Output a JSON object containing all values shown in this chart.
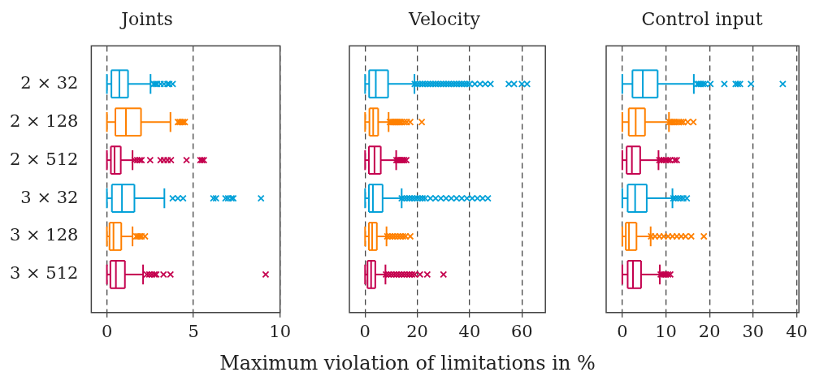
{
  "chart_data": [
    {
      "type": "box",
      "orientation": "horizontal",
      "title": "Joints",
      "categories": [
        "2 × 32",
        "2 × 128",
        "2 × 512",
        "3 × 32",
        "3 × 128",
        "3 × 512"
      ],
      "colors": [
        "#00a0d8",
        "#ff8000",
        "#c4004e",
        "#00a0d8",
        "#ff8000",
        "#c4004e"
      ],
      "marker": "cross",
      "grid": "x",
      "xlim": [
        -0.9,
        10
      ],
      "xticks": [
        0,
        5,
        10
      ],
      "boxes": [
        {
          "low": 0,
          "q1": 0.26,
          "median": 0.72,
          "q3": 1.22,
          "high": 2.52,
          "outliers": [
            2.7,
            2.8,
            2.9,
            3.1,
            3.3,
            3.5,
            3.6,
            3.8
          ]
        },
        {
          "low": 0,
          "q1": 0.49,
          "median": 1.1,
          "q3": 1.97,
          "high": 3.67,
          "outliers": [
            4.1,
            4.2,
            4.3,
            4.4,
            4.5
          ]
        },
        {
          "low": 0,
          "q1": 0.23,
          "median": 0.44,
          "q3": 0.8,
          "high": 1.48,
          "outliers": [
            1.6,
            1.75,
            1.9,
            2.0,
            2.5,
            3.1,
            3.3,
            3.5,
            3.7,
            4.6,
            5.4,
            5.5,
            5.6
          ]
        },
        {
          "low": 0,
          "q1": 0.29,
          "median": 0.87,
          "q3": 1.59,
          "high": 3.32,
          "outliers": [
            3.8,
            4.1,
            4.4,
            6.15,
            6.3,
            6.85,
            7.0,
            7.2,
            7.3,
            8.9
          ]
        },
        {
          "low": 0,
          "q1": 0.15,
          "median": 0.38,
          "q3": 0.83,
          "high": 1.48,
          "outliers": [
            1.7,
            1.8,
            1.9,
            2.0,
            2.2
          ]
        },
        {
          "low": 0,
          "q1": 0.2,
          "median": 0.52,
          "q3": 1.04,
          "high": 2.09,
          "outliers": [
            2.3,
            2.45,
            2.6,
            2.75,
            2.85,
            3.27,
            3.67,
            9.17
          ]
        }
      ]
    },
    {
      "type": "box",
      "orientation": "horizontal",
      "title": "Velocity",
      "xlabel": "Maximum violation of limitations in %",
      "tick_labels": "x",
      "colors": [
        "#00a0d8",
        "#ff8000",
        "#c4004e",
        "#00a0d8",
        "#ff8000",
        "#c4004e"
      ],
      "marker": "cross",
      "grid": "x",
      "xlim": [
        -6,
        69
      ],
      "xticks": [
        0,
        20,
        40,
        60
      ],
      "boxes": [
        {
          "low": 0,
          "q1": 1.55,
          "median": 4.1,
          "q3": 8.8,
          "high": 18.9,
          "outliers": [
            19,
            20,
            21,
            22,
            23,
            24,
            25,
            26,
            27,
            28,
            29,
            30,
            31,
            32,
            33,
            34,
            35,
            36,
            37,
            38,
            39,
            40,
            42,
            44,
            46,
            48,
            55,
            57,
            60,
            62
          ]
        },
        {
          "low": 0,
          "q1": 1.66,
          "median": 3.1,
          "q3": 5.0,
          "high": 9.0,
          "outliers": [
            9.5,
            10,
            10.5,
            11,
            11.5,
            12,
            12.5,
            13,
            13.5,
            14,
            15,
            16,
            17.3,
            21.7
          ]
        },
        {
          "low": 0,
          "q1": 1.45,
          "median": 3.6,
          "q3": 6.0,
          "high": 11.9,
          "outliers": [
            12,
            12.5,
            13,
            13.5,
            14,
            14.5,
            15,
            15.8
          ]
        },
        {
          "low": 0,
          "q1": 1.45,
          "median": 3.0,
          "q3": 6.7,
          "high": 14.0,
          "outliers": [
            14,
            15,
            16,
            17,
            18,
            19,
            20,
            21,
            22,
            23,
            25,
            27,
            29,
            31,
            33,
            35,
            37,
            39,
            41,
            43,
            45,
            47
          ]
        },
        {
          "low": 0,
          "q1": 1.45,
          "median": 2.7,
          "q3": 4.5,
          "high": 8.2,
          "outliers": [
            8.5,
            9.5,
            10.5,
            11.5,
            12.5,
            13.5,
            14.5,
            15.5,
            17.3
          ]
        },
        {
          "low": 0,
          "q1": 0.93,
          "median": 2.3,
          "q3": 3.9,
          "high": 7.8,
          "outliers": [
            8,
            9,
            10,
            11,
            12,
            13,
            14,
            15,
            16,
            17,
            18,
            19,
            21,
            23.8,
            30
          ]
        }
      ]
    },
    {
      "type": "box",
      "orientation": "horizontal",
      "title": "Control input",
      "tick_labels": "x",
      "colors": [
        "#00a0d8",
        "#ff8000",
        "#c4004e",
        "#00a0d8",
        "#ff8000",
        "#c4004e"
      ],
      "marker": "cross",
      "grid": "x",
      "xlim": [
        -3.7,
        40.5
      ],
      "xticks": [
        0,
        10,
        20,
        30,
        40
      ],
      "boxes": [
        {
          "low": 0,
          "q1": 2.33,
          "median": 4.7,
          "q3": 8.1,
          "high": 16.4,
          "outliers": [
            17.2,
            17.6,
            18,
            18.5,
            19,
            20.2,
            23.4,
            26,
            26.5,
            27,
            29.5,
            36.8
          ]
        },
        {
          "low": 0,
          "q1": 1.47,
          "median": 3.07,
          "q3": 5.2,
          "high": 10.7,
          "outliers": [
            10.8,
            11.2,
            11.6,
            12,
            12.5,
            13,
            13.5,
            14,
            15,
            16.3
          ]
        },
        {
          "low": 0,
          "q1": 1.0,
          "median": 2.2,
          "q3": 4.1,
          "high": 8.3,
          "outliers": [
            8.5,
            9,
            9.5,
            10,
            10.5,
            11,
            12,
            12.5
          ]
        },
        {
          "low": 0,
          "q1": 1.23,
          "median": 2.94,
          "q3": 5.6,
          "high": 11.5,
          "outliers": [
            11.7,
            12.2,
            12.8,
            13.4,
            14,
            14.8
          ]
        },
        {
          "low": 0,
          "q1": 0.8,
          "median": 1.53,
          "q3": 3.25,
          "high": 6.5,
          "outliers": [
            6.6,
            7.5,
            8.5,
            9.5,
            10.5,
            11.5,
            12.5,
            13.5,
            14.5,
            15.8,
            18.7
          ]
        },
        {
          "low": 0,
          "q1": 1.23,
          "median": 2.45,
          "q3": 4.3,
          "high": 8.6,
          "outliers": [
            8.8,
            9.2,
            9.6,
            10,
            10.5,
            11
          ]
        }
      ]
    }
  ]
}
